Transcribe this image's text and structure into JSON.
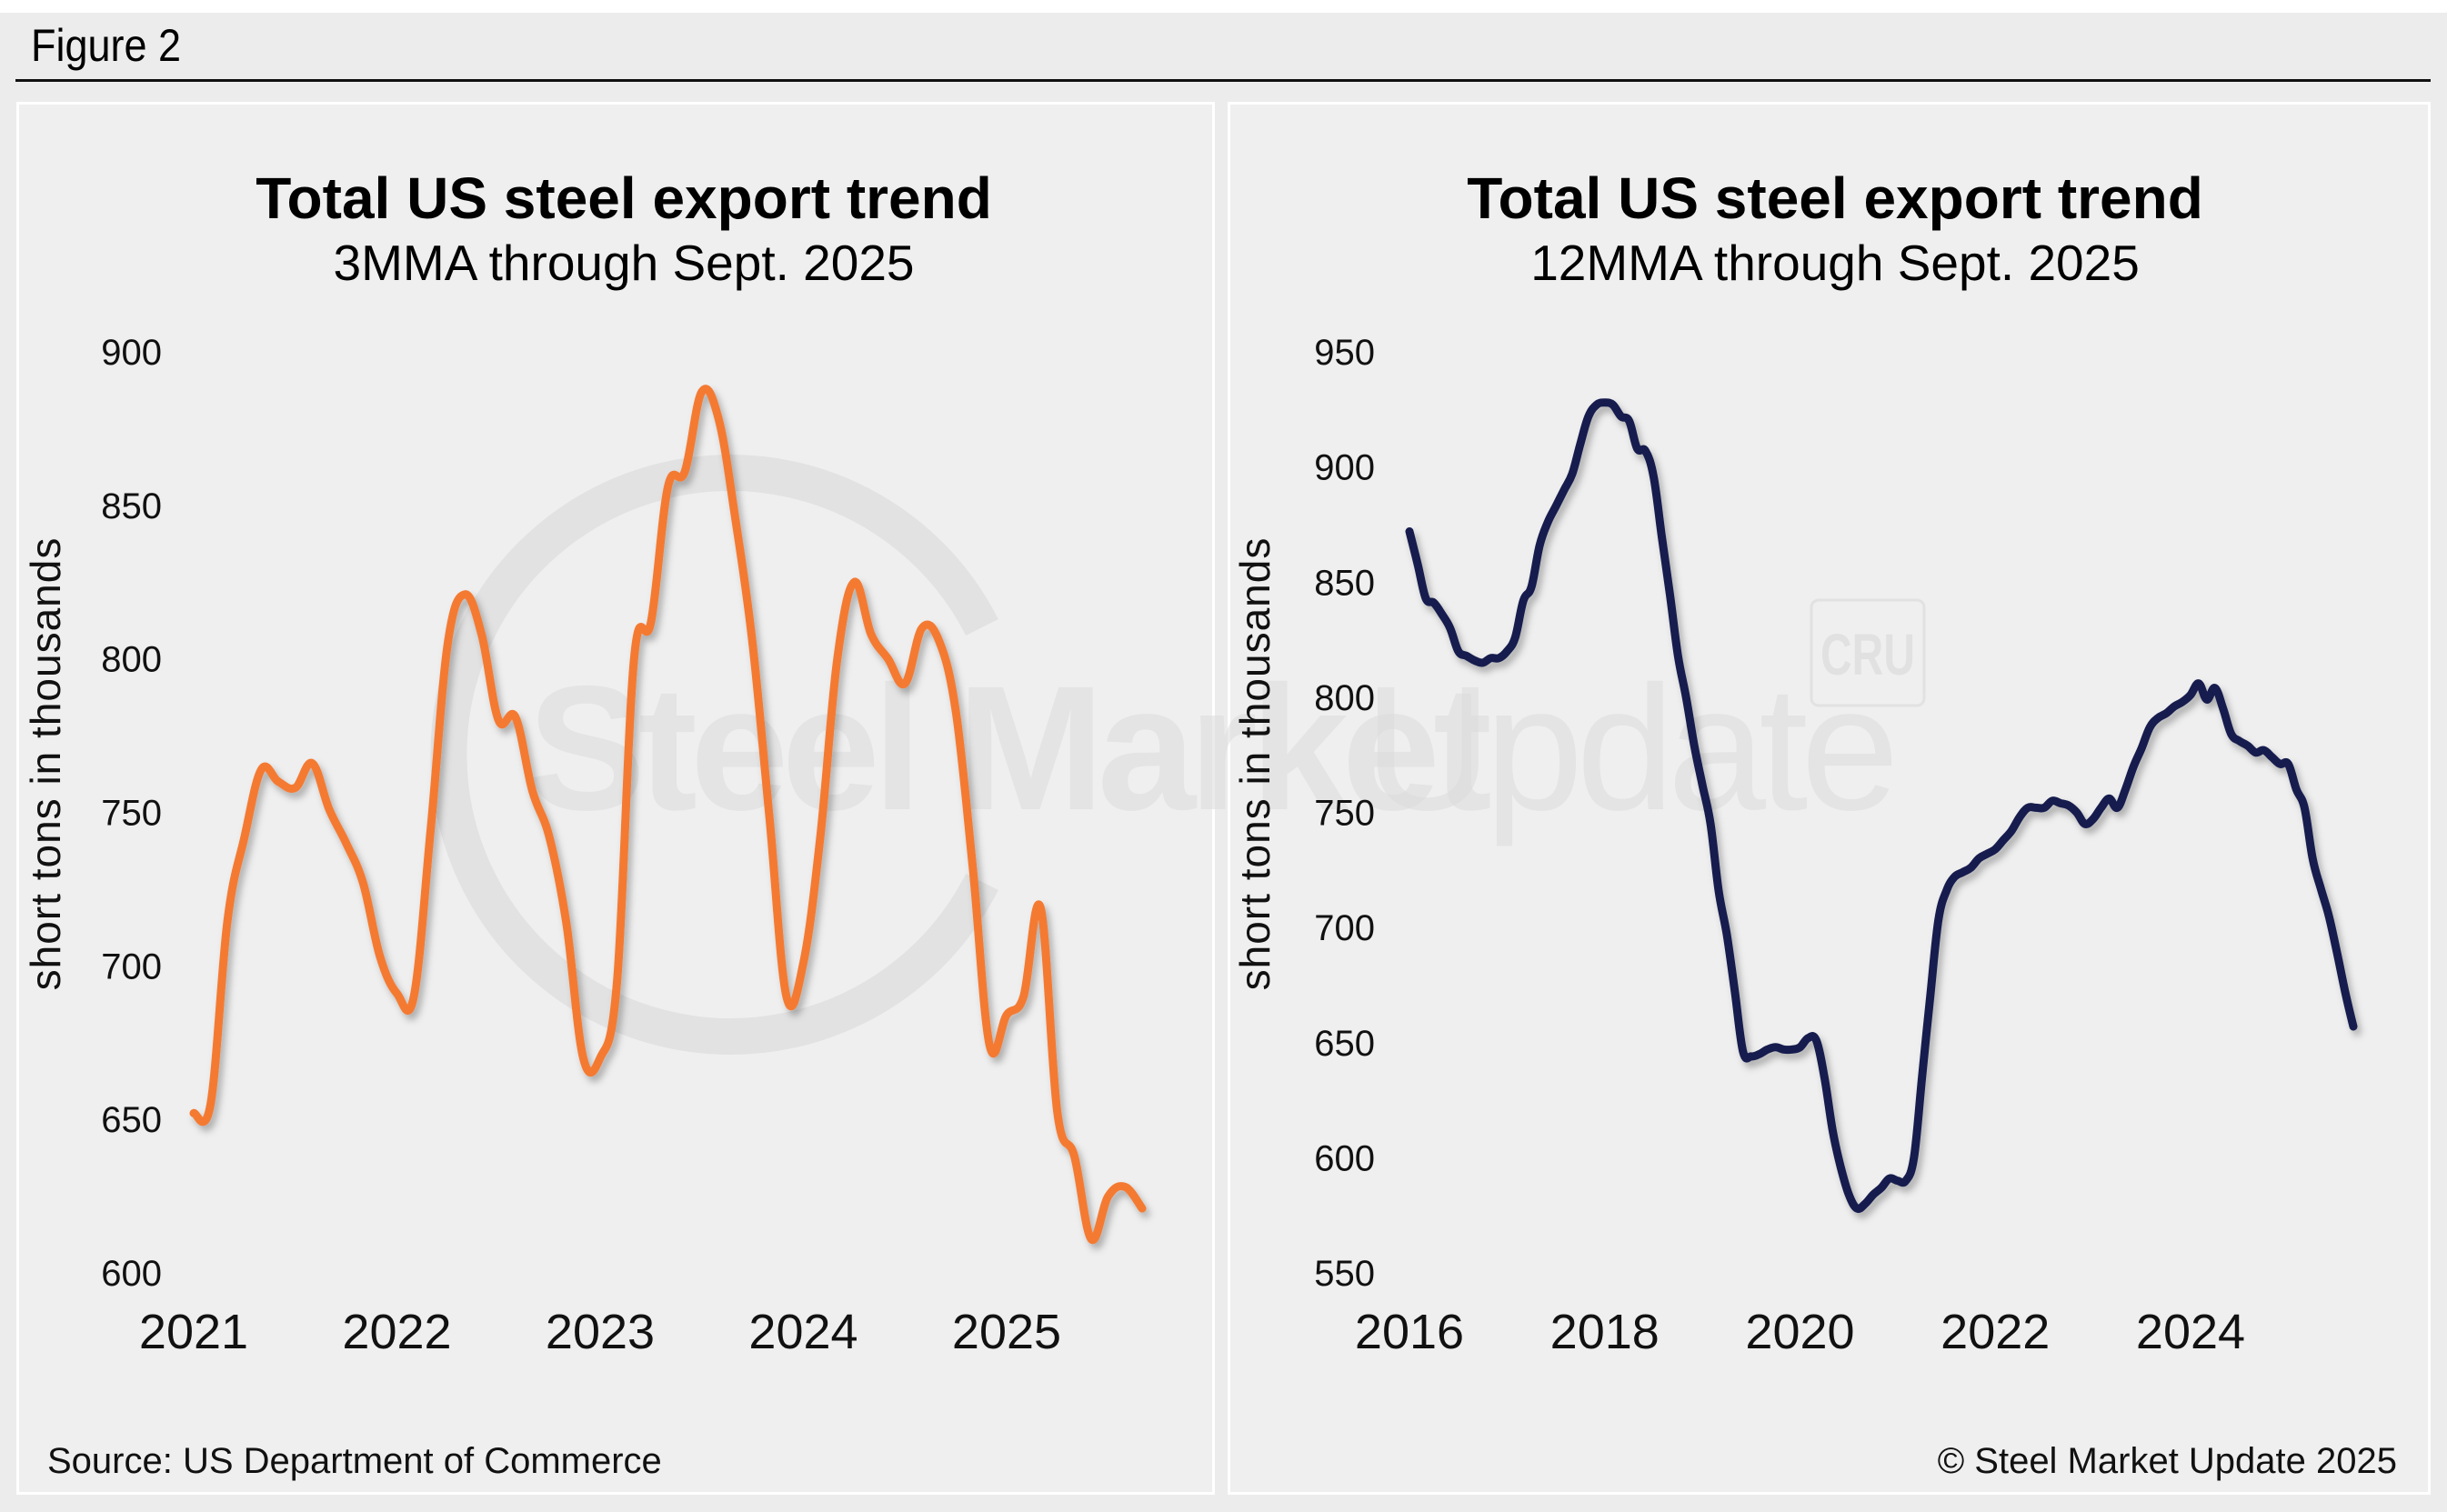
{
  "figure_label": "Figure 2",
  "source": "Source: US Department of Commerce",
  "copyright": "© Steel Market Update 2025",
  "watermark": {
    "brand": "Steel Market Update",
    "brand_bold": "Steel Market",
    "brand_light": "Update",
    "partner": "CRU"
  },
  "colors": {
    "series_3mma": "#f47a33",
    "series_12mma": "#151c4d",
    "background": "#ececec",
    "text": "#111111"
  },
  "chart_data": [
    {
      "type": "line",
      "title": "Total US steel export trend",
      "subtitle": "3MMA through Sept. 2025",
      "xlabel": "",
      "ylabel": "short tons in thousands",
      "ylim": [
        600,
        900
      ],
      "yticks": [
        600,
        650,
        700,
        750,
        800,
        850,
        900
      ],
      "xlim": [
        "2021-01",
        "2025-09"
      ],
      "xticks": [
        "2021",
        "2022",
        "2023",
        "2024",
        "2025"
      ],
      "grid": false,
      "legend": "none",
      "start": "2021-01",
      "frequency": "monthly",
      "series": [
        {
          "name": "3MMA",
          "values": [
            652,
            655,
            715,
            742,
            764,
            760,
            758,
            766,
            751,
            740,
            727,
            703,
            691,
            690,
            745,
            805,
            821,
            808,
            780,
            781,
            757,
            742,
            714,
            670,
            670,
            695,
            800,
            812,
            856,
            861,
            887,
            878,
            845,
            805,
            748,
            690,
            701,
            742,
            800,
            825,
            808,
            800,
            792,
            810,
            806,
            783,
            732,
            674,
            684,
            690,
            719,
            652,
            638,
            611,
            625,
            628,
            621
          ]
        }
      ]
    },
    {
      "type": "line",
      "title": "Total US steel export trend",
      "subtitle": "12MMA through Sept. 2025",
      "xlabel": "",
      "ylabel": "short tons in thousands",
      "ylim": [
        550,
        950
      ],
      "yticks": [
        550,
        600,
        650,
        700,
        750,
        800,
        850,
        900,
        950
      ],
      "xlim": [
        "2016-01",
        "2025-09"
      ],
      "xticks": [
        "2016",
        "2018",
        "2020",
        "2022",
        "2024"
      ],
      "grid": false,
      "legend": "none",
      "start": "2016-01",
      "frequency": "monthly",
      "series": [
        {
          "name": "12MMA",
          "values": [
            872,
            858,
            843,
            841,
            836,
            830,
            820,
            818,
            816,
            815,
            817,
            817,
            820,
            826,
            842,
            848,
            866,
            876,
            883,
            890,
            897,
            910,
            922,
            927,
            928,
            927,
            922,
            920,
            908,
            907,
            896,
            870,
            845,
            818,
            800,
            779,
            762,
            745,
            716,
            697,
            672,
            646,
            644,
            645,
            647,
            648,
            647,
            647,
            648,
            652,
            651,
            635,
            612,
            596,
            584,
            578,
            580,
            584,
            587,
            591,
            590,
            590,
            600,
            635,
            670,
            703,
            716,
            722,
            724,
            726,
            730,
            732,
            734,
            738,
            742,
            748,
            752,
            752,
            752,
            755,
            754,
            753,
            750,
            745,
            747,
            752,
            756,
            752,
            760,
            770,
            778,
            787,
            791,
            793,
            796,
            798,
            801,
            806,
            799,
            804,
            795,
            784,
            781,
            779,
            776,
            777,
            774,
            771,
            771,
            760,
            752,
            730,
            717,
            705,
            689,
            672,
            657
          ]
        }
      ]
    }
  ]
}
